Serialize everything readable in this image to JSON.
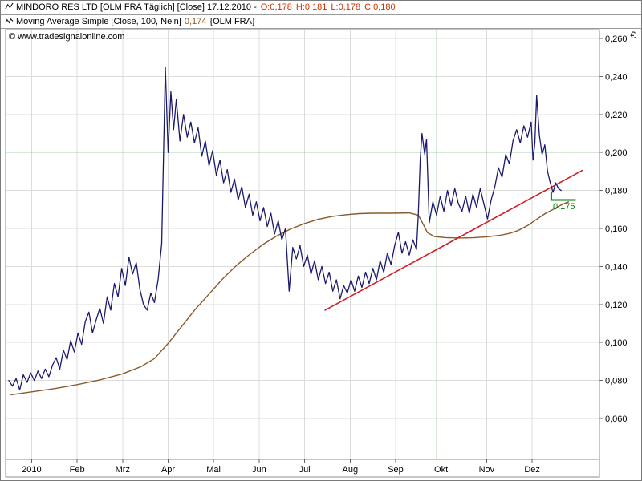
{
  "header": {
    "row1": {
      "title": "MINDORO RES LTD [OLM FRA  Täglich] [Close] 17.12.2010 -",
      "ohlc": [
        "O:0,178",
        "H:0,181",
        "L:0,178",
        "C:0,180"
      ]
    },
    "row2": {
      "label": "Moving Average Simple [Close, 100, Nein]",
      "value": "0,174",
      "suffix": "{OLM FRA}"
    }
  },
  "copyright": "© www.tradesignalonline.com",
  "colors": {
    "price": "#1a1a6e",
    "moving_average": "#8a5a2b",
    "trendline": "#cc2222",
    "support": "#007a00",
    "ohlc_text": "#cc3300",
    "grid": "#dcdcdc",
    "accent_green": "#aed0ae"
  },
  "chart_data": {
    "type": "line",
    "title": "MINDORO RES LTD [OLM FRA Täglich] [Close] 17.12.2010",
    "x_unit": "months since Jan 2010 (0 = Jan 1)",
    "x_range": [
      0,
      12.6
    ],
    "x_axis": {
      "labels": [
        "2010",
        "Feb",
        "Mrz",
        "Apr",
        "Mai",
        "Jun",
        "Jul",
        "Aug",
        "Sep",
        "Okt",
        "Nov",
        "Dez"
      ]
    },
    "y_axis": {
      "currency": "€",
      "tick_values": [
        0.26,
        0.24,
        0.22,
        0.2,
        0.18,
        0.16,
        0.14,
        0.12,
        0.1,
        0.08,
        0.06
      ],
      "tick_labels": [
        "0,260",
        "0,240",
        "0,220",
        "0,200",
        "0,180",
        "0,160",
        "0,140",
        "0,120",
        "0,100",
        "0,080",
        "0,060"
      ],
      "ylim": [
        0.038,
        0.265
      ]
    },
    "accents": {
      "h_value": 0.2,
      "v_month_frac": 9.4,
      "color": "#aed0ae"
    },
    "series": [
      {
        "name": "moving-average-100-line",
        "color": "#8a5a2b",
        "width": 1.4,
        "points": [
          [
            0.05,
            0.0725
          ],
          [
            0.5,
            0.074
          ],
          [
            1.0,
            0.0757
          ],
          [
            1.5,
            0.0778
          ],
          [
            2.0,
            0.0803
          ],
          [
            2.5,
            0.0835
          ],
          [
            2.9,
            0.0872
          ],
          [
            3.2,
            0.0915
          ],
          [
            3.5,
            0.0995
          ],
          [
            3.8,
            0.1085
          ],
          [
            4.1,
            0.1175
          ],
          [
            4.4,
            0.1255
          ],
          [
            4.7,
            0.1335
          ],
          [
            5.0,
            0.1405
          ],
          [
            5.3,
            0.1465
          ],
          [
            5.6,
            0.1518
          ],
          [
            5.9,
            0.1562
          ],
          [
            6.2,
            0.1598
          ],
          [
            6.5,
            0.1626
          ],
          [
            6.8,
            0.1648
          ],
          [
            7.1,
            0.1663
          ],
          [
            7.4,
            0.1672
          ],
          [
            7.7,
            0.1678
          ],
          [
            8.0,
            0.168
          ],
          [
            8.4,
            0.168
          ],
          [
            8.8,
            0.1682
          ],
          [
            9.0,
            0.167
          ],
          [
            9.1,
            0.1625
          ],
          [
            9.2,
            0.1578
          ],
          [
            9.35,
            0.1558
          ],
          [
            9.6,
            0.1552
          ],
          [
            9.9,
            0.155
          ],
          [
            10.2,
            0.1551
          ],
          [
            10.5,
            0.1556
          ],
          [
            10.8,
            0.1564
          ],
          [
            11.0,
            0.1574
          ],
          [
            11.2,
            0.159
          ],
          [
            11.4,
            0.1615
          ],
          [
            11.6,
            0.1648
          ],
          [
            11.8,
            0.168
          ],
          [
            12.0,
            0.1705
          ],
          [
            12.15,
            0.1725
          ],
          [
            12.3,
            0.174
          ]
        ]
      },
      {
        "name": "trendline",
        "color": "#cc2222",
        "width": 1.6,
        "points": [
          [
            6.95,
            0.117
          ],
          [
            12.6,
            0.1905
          ]
        ]
      },
      {
        "name": "price-line",
        "color": "#1a1a6e",
        "width": 1.3,
        "points": [
          [
            0.0,
            0.08
          ],
          [
            0.08,
            0.077
          ],
          [
            0.16,
            0.081
          ],
          [
            0.24,
            0.075
          ],
          [
            0.32,
            0.083
          ],
          [
            0.4,
            0.079
          ],
          [
            0.48,
            0.084
          ],
          [
            0.56,
            0.08
          ],
          [
            0.64,
            0.085
          ],
          [
            0.72,
            0.081
          ],
          [
            0.8,
            0.086
          ],
          [
            0.88,
            0.082
          ],
          [
            0.96,
            0.088
          ],
          [
            1.04,
            0.092
          ],
          [
            1.12,
            0.086
          ],
          [
            1.2,
            0.096
          ],
          [
            1.28,
            0.091
          ],
          [
            1.36,
            0.101
          ],
          [
            1.44,
            0.095
          ],
          [
            1.52,
            0.105
          ],
          [
            1.6,
            0.099
          ],
          [
            1.68,
            0.111
          ],
          [
            1.76,
            0.116
          ],
          [
            1.84,
            0.105
          ],
          [
            1.92,
            0.112
          ],
          [
            2.0,
            0.118
          ],
          [
            2.08,
            0.11
          ],
          [
            2.16,
            0.124
          ],
          [
            2.24,
            0.117
          ],
          [
            2.32,
            0.131
          ],
          [
            2.4,
            0.124
          ],
          [
            2.48,
            0.139
          ],
          [
            2.56,
            0.13
          ],
          [
            2.64,
            0.145
          ],
          [
            2.72,
            0.136
          ],
          [
            2.8,
            0.142
          ],
          [
            2.88,
            0.128
          ],
          [
            2.96,
            0.12
          ],
          [
            3.04,
            0.117
          ],
          [
            3.12,
            0.126
          ],
          [
            3.2,
            0.121
          ],
          [
            3.28,
            0.133
          ],
          [
            3.36,
            0.152
          ],
          [
            3.44,
            0.245
          ],
          [
            3.5,
            0.2
          ],
          [
            3.56,
            0.232
          ],
          [
            3.62,
            0.212
          ],
          [
            3.68,
            0.228
          ],
          [
            3.76,
            0.206
          ],
          [
            3.84,
            0.22
          ],
          [
            3.92,
            0.208
          ],
          [
            4.0,
            0.216
          ],
          [
            4.08,
            0.205
          ],
          [
            4.16,
            0.213
          ],
          [
            4.24,
            0.198
          ],
          [
            4.32,
            0.206
          ],
          [
            4.4,
            0.193
          ],
          [
            4.48,
            0.201
          ],
          [
            4.56,
            0.188
          ],
          [
            4.64,
            0.196
          ],
          [
            4.72,
            0.184
          ],
          [
            4.8,
            0.191
          ],
          [
            4.88,
            0.179
          ],
          [
            4.96,
            0.186
          ],
          [
            5.04,
            0.175
          ],
          [
            5.12,
            0.182
          ],
          [
            5.2,
            0.171
          ],
          [
            5.28,
            0.178
          ],
          [
            5.36,
            0.167
          ],
          [
            5.44,
            0.174
          ],
          [
            5.52,
            0.164
          ],
          [
            5.6,
            0.171
          ],
          [
            5.68,
            0.161
          ],
          [
            5.76,
            0.168
          ],
          [
            5.84,
            0.157
          ],
          [
            5.92,
            0.164
          ],
          [
            6.0,
            0.154
          ],
          [
            6.08,
            0.16
          ],
          [
            6.16,
            0.127
          ],
          [
            6.24,
            0.15
          ],
          [
            6.32,
            0.144
          ],
          [
            6.4,
            0.151
          ],
          [
            6.48,
            0.14
          ],
          [
            6.56,
            0.146
          ],
          [
            6.64,
            0.136
          ],
          [
            6.72,
            0.143
          ],
          [
            6.8,
            0.133
          ],
          [
            6.88,
            0.14
          ],
          [
            6.96,
            0.131
          ],
          [
            7.04,
            0.137
          ],
          [
            7.12,
            0.127
          ],
          [
            7.2,
            0.133
          ],
          [
            7.28,
            0.123
          ],
          [
            7.36,
            0.13
          ],
          [
            7.44,
            0.126
          ],
          [
            7.52,
            0.133
          ],
          [
            7.6,
            0.127
          ],
          [
            7.68,
            0.135
          ],
          [
            7.76,
            0.129
          ],
          [
            7.84,
            0.137
          ],
          [
            7.92,
            0.131
          ],
          [
            8.0,
            0.139
          ],
          [
            8.08,
            0.133
          ],
          [
            8.16,
            0.143
          ],
          [
            8.24,
            0.137
          ],
          [
            8.32,
            0.147
          ],
          [
            8.4,
            0.141
          ],
          [
            8.48,
            0.151
          ],
          [
            8.56,
            0.158
          ],
          [
            8.64,
            0.147
          ],
          [
            8.72,
            0.153
          ],
          [
            8.8,
            0.146
          ],
          [
            8.88,
            0.154
          ],
          [
            8.96,
            0.149
          ],
          [
            9.0,
            0.168
          ],
          [
            9.04,
            0.196
          ],
          [
            9.08,
            0.21
          ],
          [
            9.14,
            0.199
          ],
          [
            9.18,
            0.207
          ],
          [
            9.24,
            0.163
          ],
          [
            9.32,
            0.174
          ],
          [
            9.4,
            0.167
          ],
          [
            9.48,
            0.177
          ],
          [
            9.56,
            0.169
          ],
          [
            9.64,
            0.18
          ],
          [
            9.72,
            0.172
          ],
          [
            9.8,
            0.181
          ],
          [
            9.88,
            0.173
          ],
          [
            9.96,
            0.169
          ],
          [
            10.04,
            0.177
          ],
          [
            10.12,
            0.168
          ],
          [
            10.2,
            0.178
          ],
          [
            10.28,
            0.171
          ],
          [
            10.36,
            0.181
          ],
          [
            10.44,
            0.173
          ],
          [
            10.52,
            0.165
          ],
          [
            10.6,
            0.175
          ],
          [
            10.68,
            0.182
          ],
          [
            10.76,
            0.192
          ],
          [
            10.84,
            0.187
          ],
          [
            10.92,
            0.199
          ],
          [
            11.0,
            0.194
          ],
          [
            11.08,
            0.206
          ],
          [
            11.16,
            0.212
          ],
          [
            11.24,
            0.205
          ],
          [
            11.32,
            0.214
          ],
          [
            11.4,
            0.208
          ],
          [
            11.48,
            0.216
          ],
          [
            11.52,
            0.196
          ],
          [
            11.56,
            0.205
          ],
          [
            11.6,
            0.23
          ],
          [
            11.66,
            0.209
          ],
          [
            11.72,
            0.199
          ],
          [
            11.78,
            0.204
          ],
          [
            11.84,
            0.19
          ],
          [
            11.9,
            0.184
          ],
          [
            11.96,
            0.179
          ],
          [
            12.02,
            0.184
          ],
          [
            12.08,
            0.181
          ],
          [
            12.14,
            0.18
          ]
        ]
      },
      {
        "name": "support-line",
        "color": "#007a00",
        "width": 2,
        "points": [
          [
            11.92,
            0.175
          ],
          [
            12.45,
            0.175
          ]
        ],
        "start_tick_value": 0.1795
      }
    ],
    "annotations": [
      {
        "text": "0,175",
        "color": "#007a00",
        "x_month_frac": 11.95,
        "value": 0.172
      }
    ],
    "legend": [
      {
        "label": "MINDORO RES LTD Close",
        "color": "#1a1a6e"
      },
      {
        "label": "Moving Average Simple (Close, 100)",
        "color": "#8a5a2b"
      }
    ],
    "grid": true
  }
}
